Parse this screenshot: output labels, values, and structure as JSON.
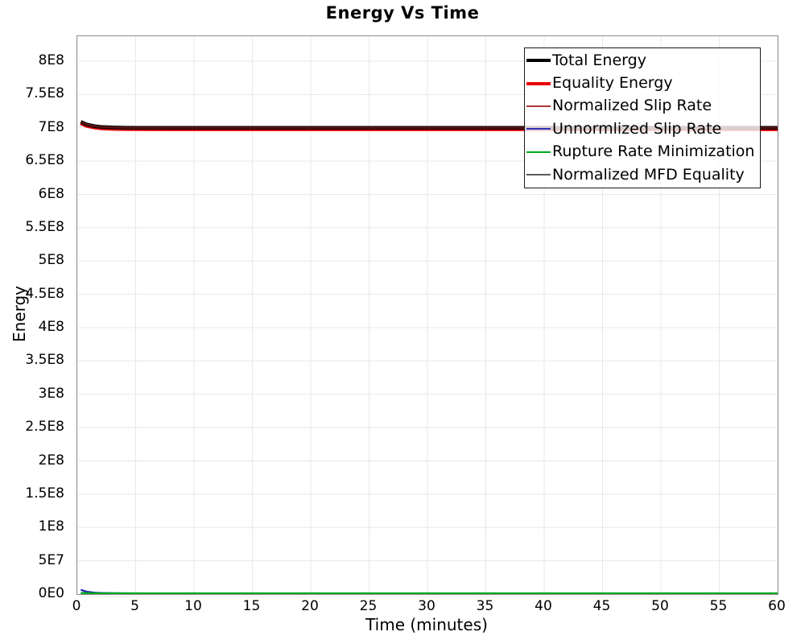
{
  "title": "Energy Vs Time",
  "axes": {
    "x_label": "Time (minutes)",
    "y_label": "Energy"
  },
  "colors": {
    "grid": "#e8e8e8",
    "plot_border": "#8f8f8f",
    "text": "#000000",
    "legend_border": "#1a1a1a",
    "legend_background": "rgba(255,255,255,0.80)"
  },
  "chart_data": {
    "type": "line",
    "title": "Energy Vs Time",
    "xlabel": "Time (minutes)",
    "ylabel": "Energy",
    "xlim": [
      0,
      60
    ],
    "ylim": [
      0,
      837500000
    ],
    "grid": true,
    "legend_position": "top-right",
    "xticks": [
      0,
      5,
      10,
      15,
      20,
      25,
      30,
      35,
      40,
      45,
      50,
      55,
      60
    ],
    "yticks": [
      {
        "value": 0,
        "label": "0E0"
      },
      {
        "value": 50000000,
        "label": "5E7"
      },
      {
        "value": 100000000,
        "label": "1E8"
      },
      {
        "value": 150000000,
        "label": "1.5E8"
      },
      {
        "value": 200000000,
        "label": "2E8"
      },
      {
        "value": 250000000,
        "label": "2.5E8"
      },
      {
        "value": 300000000,
        "label": "3E8"
      },
      {
        "value": 350000000,
        "label": "3.5E8"
      },
      {
        "value": 400000000,
        "label": "4E8"
      },
      {
        "value": 450000000,
        "label": "4.5E8"
      },
      {
        "value": 500000000,
        "label": "5E8"
      },
      {
        "value": 550000000,
        "label": "5.5E8"
      },
      {
        "value": 600000000,
        "label": "6E8"
      },
      {
        "value": 650000000,
        "label": "6.5E8"
      },
      {
        "value": 700000000,
        "label": "7E8"
      },
      {
        "value": 750000000,
        "label": "7.5E8"
      },
      {
        "value": 800000000,
        "label": "8E8"
      }
    ],
    "x": [
      0.3,
      0.8,
      1.5,
      2,
      3,
      4,
      5,
      7.5,
      10,
      15,
      20,
      25,
      30,
      35,
      40,
      45,
      50,
      55,
      60
    ],
    "series": [
      {
        "name": "Total Energy",
        "color": "#000000",
        "line_width": 4.5,
        "legend_line_width": 4,
        "z": 5,
        "values": [
          709000000.0,
          705000000.0,
          702500000.0,
          701400000.0,
          700600000.0,
          700200000.0,
          700100000.0,
          700000000.0,
          700000000.0,
          700000000.0,
          700000000.0,
          700000000.0,
          700000000.0,
          700000000.0,
          700000000.0,
          700000000.0,
          700000000.0,
          700000000.0,
          700000000.0
        ]
      },
      {
        "name": "Equality Energy",
        "color": "#e60000",
        "line_width": 4.5,
        "legend_line_width": 4,
        "z": 4,
        "values": [
          706800000.0,
          702800000.0,
          700300000.0,
          699200000.0,
          698400000.0,
          698000000.0,
          697900000.0,
          697800000.0,
          697800000.0,
          697800000.0,
          697800000.0,
          697800000.0,
          697800000.0,
          697800000.0,
          697800000.0,
          697800000.0,
          697800000.0,
          697800000.0,
          697800000.0
        ]
      },
      {
        "name": "Normalized Slip Rate",
        "color": "#b03434",
        "plot_color": "#5a1616",
        "line_width": 2.5,
        "legend_line_width": 2,
        "z": 6,
        "values": [
          709000000.0,
          705000000.0,
          702500000.0,
          701400000.0,
          700600000.0,
          700200000.0,
          700100000.0,
          700000000.0,
          700000000.0,
          700000000.0,
          700000000.0,
          700000000.0,
          700000000.0,
          700000000.0,
          700000000.0,
          700000000.0,
          700000000.0,
          700000000.0,
          700000000.0
        ]
      },
      {
        "name": "Unnormlized Slip Rate",
        "color": "#2930b8",
        "line_width": 2.5,
        "legend_line_width": 2,
        "z": 2,
        "values": [
          6500000.0,
          3500000.0,
          2000000.0,
          1500000.0,
          1200000.0,
          1000000.0,
          900000.0,
          900000.0,
          900000.0,
          900000.0,
          900000.0,
          900000.0,
          900000.0,
          900000.0,
          900000.0,
          900000.0,
          900000.0,
          900000.0,
          900000.0
        ]
      },
      {
        "name": "Rupture Rate Minimization",
        "color": "#00a820",
        "line_width": 2.5,
        "legend_line_width": 2,
        "z": 3,
        "values": [
          1600000.0,
          1300000.0,
          1100000.0,
          1000000.0,
          1000000.0,
          1000000.0,
          1000000.0,
          1000000.0,
          1000000.0,
          1000000.0,
          1000000.0,
          1000000.0,
          1000000.0,
          1000000.0,
          1000000.0,
          1000000.0,
          1000000.0,
          1000000.0,
          1000000.0
        ]
      },
      {
        "name": "Normalized MFD Equality",
        "color": "#5c5c5c",
        "line_width": 2,
        "legend_line_width": 2,
        "z": 1,
        "values": [
          400000.0,
          400000.0,
          400000.0,
          400000.0,
          400000.0,
          400000.0,
          400000.0,
          400000.0,
          400000.0,
          400000.0,
          400000.0,
          400000.0,
          400000.0,
          400000.0,
          400000.0,
          400000.0,
          400000.0,
          400000.0,
          400000.0
        ]
      }
    ]
  }
}
